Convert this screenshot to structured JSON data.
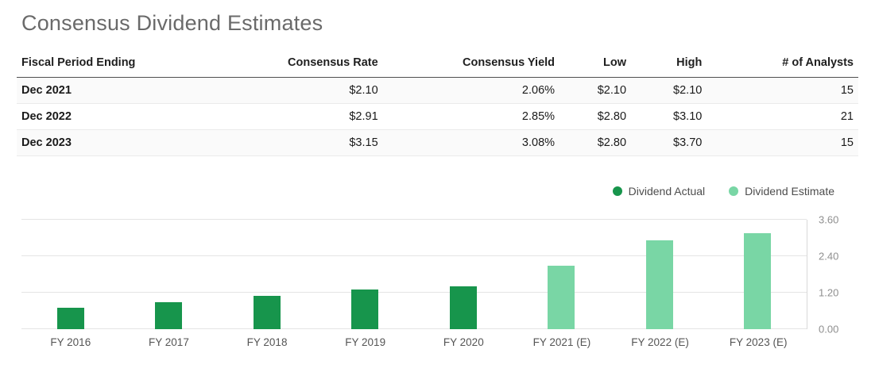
{
  "page": {
    "title": "Consensus Dividend Estimates"
  },
  "table": {
    "headers": [
      "Fiscal Period Ending",
      "Consensus Rate",
      "Consensus Yield",
      "Low",
      "High",
      "# of Analysts"
    ],
    "rows": [
      [
        "Dec 2021",
        "$2.10",
        "2.06%",
        "$2.10",
        "$2.10",
        "15"
      ],
      [
        "Dec 2022",
        "$2.91",
        "2.85%",
        "$2.80",
        "$3.10",
        "21"
      ],
      [
        "Dec 2023",
        "$3.15",
        "3.08%",
        "$2.80",
        "$3.70",
        "15"
      ]
    ]
  },
  "legend": {
    "actual": "Dividend Actual",
    "estimate": "Dividend Estimate"
  },
  "colors": {
    "actual": "#17954c",
    "estimate": "#79d6a5"
  },
  "chart_data": {
    "type": "bar",
    "title": "Consensus Dividend Estimates",
    "categories": [
      "FY 2016",
      "FY 2017",
      "FY 2018",
      "FY 2019",
      "FY 2020",
      "FY 2021 (E)",
      "FY 2022 (E)",
      "FY 2023 (E)"
    ],
    "series": [
      {
        "name": "Dividend Actual",
        "color": "#17954c",
        "values": [
          0.7,
          0.9,
          1.1,
          1.3,
          1.4,
          null,
          null,
          null
        ]
      },
      {
        "name": "Dividend Estimate",
        "color": "#79d6a5",
        "values": [
          null,
          null,
          null,
          null,
          null,
          2.1,
          2.91,
          3.15
        ]
      }
    ],
    "xlabel": "",
    "ylabel": "",
    "ylim": [
      0,
      3.6
    ],
    "yticks": [
      0.0,
      1.2,
      2.4,
      3.6
    ],
    "ytick_labels": [
      "0.00",
      "1.20",
      "2.40",
      "3.60"
    ],
    "grid": true,
    "legend_position": "top-right"
  }
}
